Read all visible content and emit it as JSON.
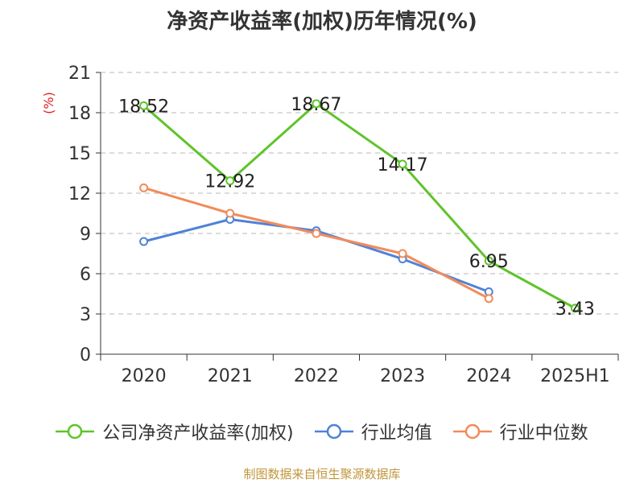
{
  "chart_data": {
    "type": "line",
    "title": "净资产收益率(加权)历年情况(%)",
    "ylabel": "(%)",
    "categories": [
      "2020",
      "2021",
      "2022",
      "2023",
      "2024",
      "2025H1"
    ],
    "yticks": [
      "0",
      "3",
      "6",
      "9",
      "12",
      "15",
      "18",
      "21"
    ],
    "ylim": [
      0,
      21
    ],
    "grid": true,
    "legend_position": "bottom",
    "series": [
      {
        "name": "公司净资产收益率(加权)",
        "color": "#5ec42a",
        "values": [
          18.52,
          12.92,
          18.67,
          14.17,
          6.95,
          3.43
        ],
        "labels": [
          "18.52",
          "12.92",
          "18.67",
          "14.17",
          "6.95",
          "3.43"
        ]
      },
      {
        "name": "行业均值",
        "color": "#4f82d8",
        "values": [
          8.4,
          10.05,
          9.2,
          7.1,
          4.65,
          null
        ]
      },
      {
        "name": "行业中位数",
        "color": "#f28b5a",
        "values": [
          12.4,
          10.5,
          9.0,
          7.5,
          4.15,
          null
        ]
      }
    ]
  },
  "footer": {
    "source": "制图数据来自恒生聚源数据库"
  }
}
